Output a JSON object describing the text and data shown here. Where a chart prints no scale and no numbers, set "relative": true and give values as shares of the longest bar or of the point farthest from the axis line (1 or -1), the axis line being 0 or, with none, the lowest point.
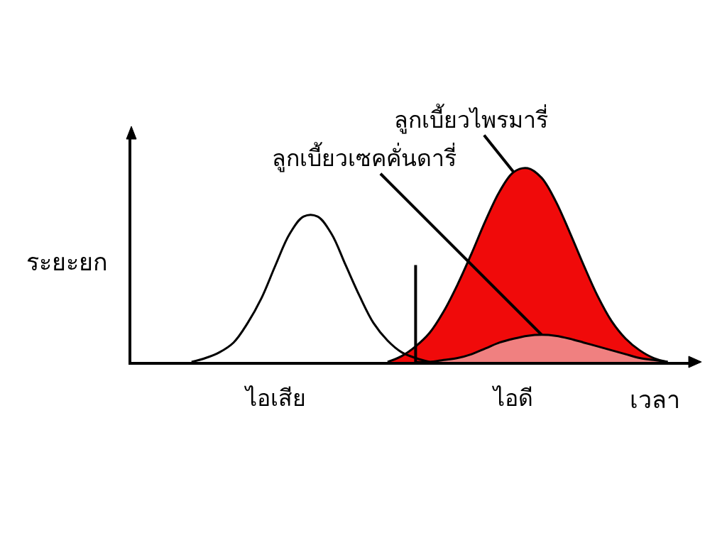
{
  "chart_data": {
    "type": "area",
    "relative": true,
    "xlabel": "เวลา",
    "ylabel": "ระยะยก",
    "categories": [
      null,
      null,
      null,
      null,
      null,
      null,
      null,
      null,
      null,
      null,
      "ไอเสีย",
      null,
      null,
      null,
      null,
      null,
      null,
      null,
      null,
      null,
      null,
      null,
      null,
      null,
      null,
      null,
      null,
      "ไอดี",
      null,
      null,
      null,
      null,
      null,
      null,
      null,
      null,
      null,
      null,
      null,
      null
    ],
    "series": [
      {
        "name": "ลูกเบี้ยวไพรมารี่",
        "color": "#f00a0a",
        "values": [
          null,
          null,
          null,
          null,
          null,
          null,
          null,
          null,
          null,
          null,
          null,
          null,
          null,
          null,
          null,
          null,
          null,
          null,
          0,
          0.03,
          0.08,
          0.15,
          0.26,
          0.4,
          0.56,
          0.73,
          0.88,
          0.98,
          1.0,
          0.95,
          0.83,
          0.67,
          0.5,
          0.34,
          0.21,
          0.12,
          0.06,
          0.02,
          0,
          null
        ]
      },
      {
        "name": "ลูกเบี้ยวเซคคั่นดารี่",
        "color": "#f08080",
        "values": [
          null,
          null,
          null,
          null,
          null,
          null,
          null,
          null,
          null,
          null,
          null,
          null,
          null,
          null,
          null,
          null,
          null,
          null,
          null,
          null,
          0,
          0,
          0.01,
          0.02,
          0.04,
          0.07,
          0.1,
          0.12,
          0.135,
          0.14,
          0.135,
          0.12,
          0.1,
          0.08,
          0.06,
          0.04,
          0.02,
          0.01,
          0,
          null
        ]
      },
      {
        "type": "line",
        "color": "#000000",
        "values": [
          null,
          null,
          null,
          null,
          0,
          0.02,
          0.05,
          0.1,
          0.2,
          0.33,
          0.5,
          0.66,
          0.75,
          0.75,
          0.66,
          0.5,
          0.34,
          0.2,
          0.11,
          0.05,
          0.02,
          0,
          null,
          null,
          null,
          null,
          null,
          null,
          null,
          null,
          null,
          null,
          null,
          null,
          null,
          null,
          null,
          null,
          null,
          null
        ]
      }
    ]
  }
}
